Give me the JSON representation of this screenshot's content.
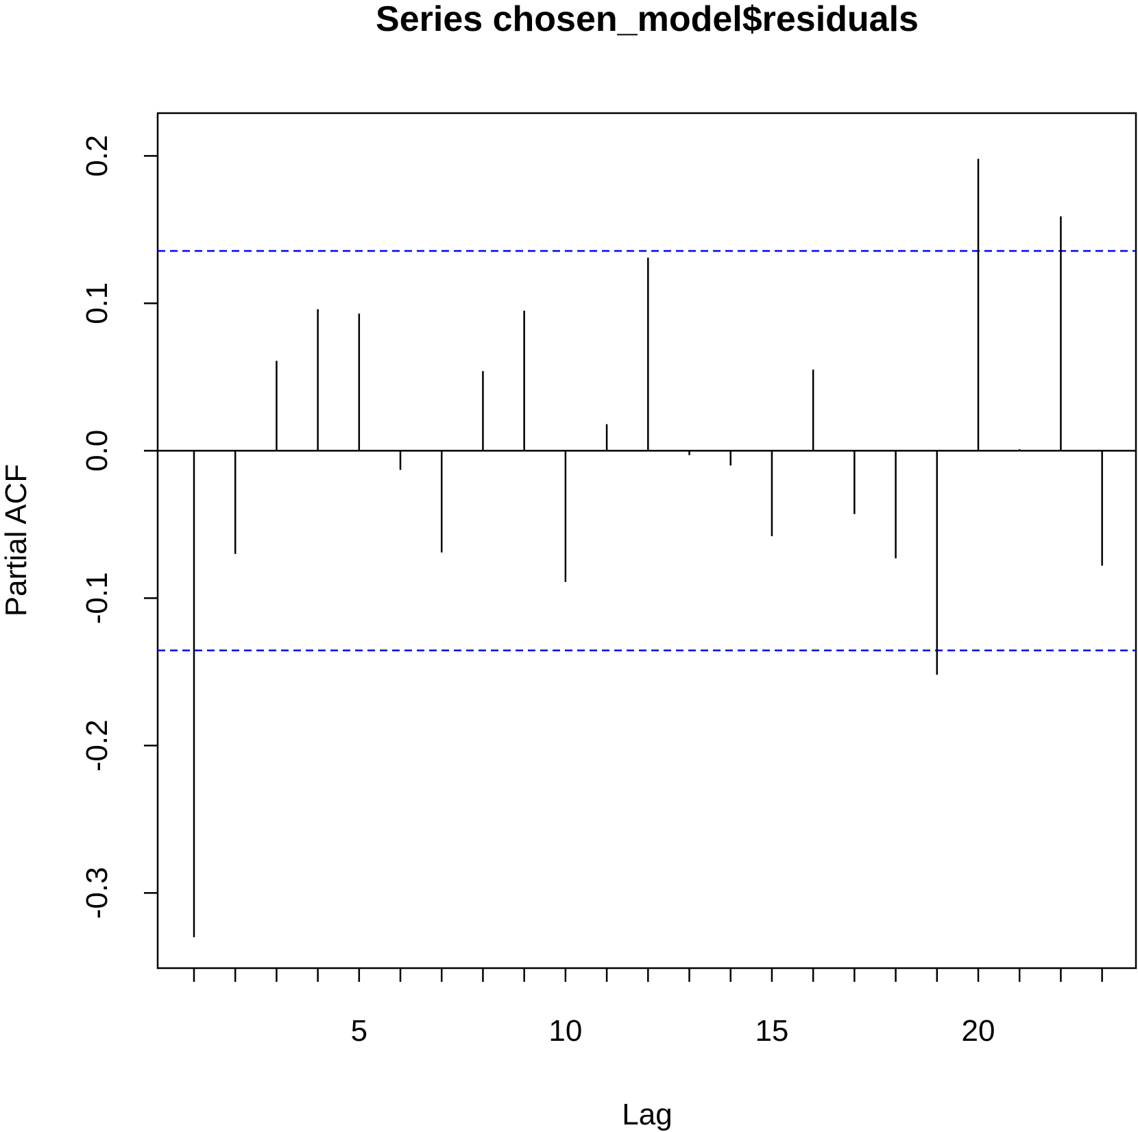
{
  "chart_data": {
    "type": "bar",
    "subtype": "pacf-spike",
    "title": "Series  chosen_model$residuals",
    "xlabel": "Lag",
    "ylabel": "Partial ACF",
    "xlim": [
      0.12,
      23.82
    ],
    "ylim": [
      -0.351,
      0.229
    ],
    "xticks": [
      5,
      10,
      15,
      20
    ],
    "yticks": [
      -0.3,
      -0.2,
      -0.1,
      0.0,
      0.1,
      0.2
    ],
    "ytick_labels": [
      "-0.3",
      "-0.2",
      "-0.1",
      "0.0",
      "0.1",
      "0.2"
    ],
    "lags": [
      1,
      2,
      3,
      4,
      5,
      6,
      7,
      8,
      9,
      10,
      11,
      12,
      13,
      14,
      15,
      16,
      17,
      18,
      19,
      20,
      21,
      22,
      23
    ],
    "values": [
      -0.33,
      -0.07,
      0.061,
      0.096,
      0.093,
      -0.013,
      -0.069,
      0.054,
      0.095,
      -0.089,
      0.018,
      0.131,
      -0.003,
      -0.01,
      -0.058,
      0.055,
      -0.043,
      -0.073,
      -0.152,
      0.198,
      0.001,
      0.159,
      -0.078
    ],
    "confidence_limit": 0.1355,
    "confidence_color": "#0000ff",
    "grid": false,
    "legend": false
  }
}
